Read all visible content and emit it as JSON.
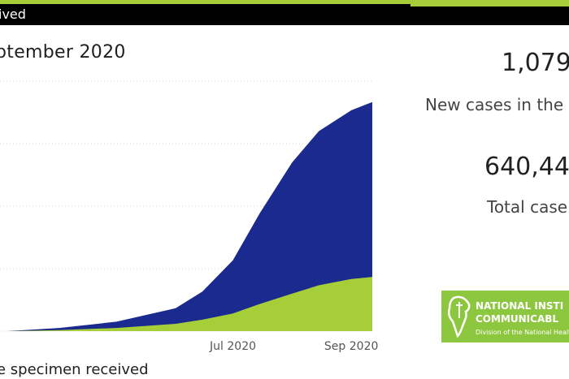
{
  "header": {
    "title_fragment": "ived"
  },
  "chart_title": "ptember 2020",
  "chart_caption": "e specimen received",
  "chart_data": {
    "type": "area",
    "x_ticks": [
      "Jul 2020",
      "Sep 2020"
    ],
    "x_range": [
      "2020-03",
      "2020-09"
    ],
    "series": [
      {
        "color": "#a6ce39",
        "points": [
          {
            "x": "2020-03-05",
            "y": 0
          },
          {
            "x": "2020-04-01",
            "y": 1
          },
          {
            "x": "2020-05-01",
            "y": 3
          },
          {
            "x": "2020-06-01",
            "y": 7
          },
          {
            "x": "2020-06-15",
            "y": 11
          },
          {
            "x": "2020-07-01",
            "y": 17
          },
          {
            "x": "2020-07-15",
            "y": 26
          },
          {
            "x": "2020-08-01",
            "y": 36
          },
          {
            "x": "2020-08-15",
            "y": 44
          },
          {
            "x": "2020-09-01",
            "y": 50
          },
          {
            "x": "2020-09-12",
            "y": 52
          }
        ]
      },
      {
        "color": "#1a2a8f",
        "points": [
          {
            "x": "2020-03-05",
            "y": 0
          },
          {
            "x": "2020-04-01",
            "y": 3
          },
          {
            "x": "2020-05-01",
            "y": 9
          },
          {
            "x": "2020-06-01",
            "y": 22
          },
          {
            "x": "2020-06-15",
            "y": 38
          },
          {
            "x": "2020-07-01",
            "y": 68
          },
          {
            "x": "2020-07-15",
            "y": 113
          },
          {
            "x": "2020-08-01",
            "y": 162
          },
          {
            "x": "2020-08-15",
            "y": 192
          },
          {
            "x": "2020-09-01",
            "y": 212
          },
          {
            "x": "2020-09-12",
            "y": 220
          }
        ]
      }
    ],
    "grid": true
  },
  "kpis": [
    {
      "value": "1,079",
      "label": "New cases in the"
    },
    {
      "value": "640,44",
      "label": "Total case"
    }
  ],
  "logo": {
    "line1": "NATIONAL INSTI",
    "line2": "COMMUNICABL",
    "subtitle": "Division of the National Health La"
  },
  "colors": {
    "accent_green": "#a6ce39",
    "series_blue": "#1a2a8f",
    "header_bg": "#000000"
  }
}
